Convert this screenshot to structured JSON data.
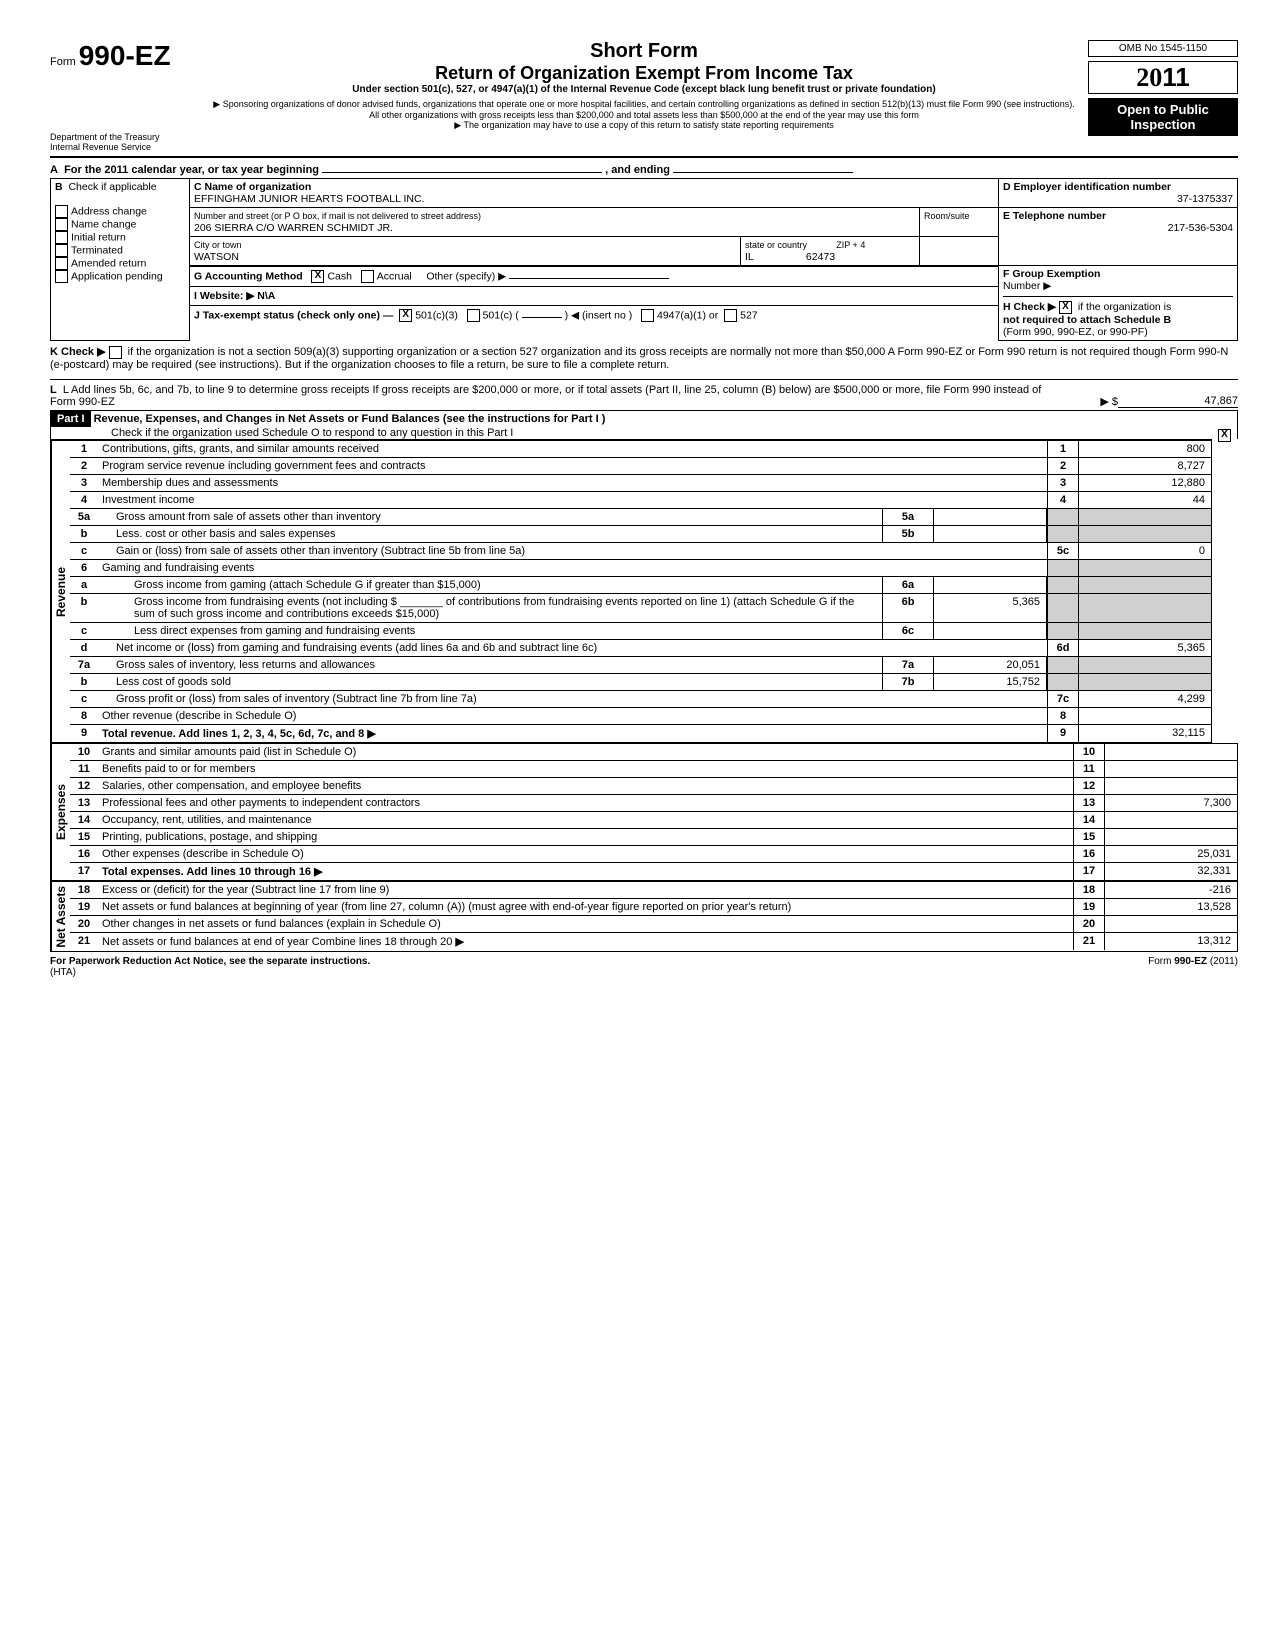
{
  "header": {
    "form_prefix": "Form",
    "form_number": "990-EZ",
    "title1": "Short Form",
    "title2": "Return of Organization Exempt From Income Tax",
    "subtitle": "Under section 501(c), 527, or 4947(a)(1) of the Internal Revenue Code (except black lung benefit trust or private foundation)",
    "sponsor_note": "▶ Sponsoring organizations of donor advised funds, organizations that operate one or more hospital facilities, and certain controlling organizations as defined in section 512(b)(13) must file Form 990 (see instructions). All other organizations with gross receipts less than $200,000 and total assets less than $500,000 at the end of the year may use this form",
    "copy_note": "▶ The organization may have to use a copy of this return to satisfy state reporting requirements",
    "dept1": "Department of the Treasury",
    "dept2": "Internal Revenue Service",
    "omb": "OMB No 1545-1150",
    "year_prefix": "20",
    "year_suffix": "11",
    "open1": "Open to Public",
    "open2": "Inspection"
  },
  "sectionA": {
    "A": "For the 2011 calendar year, or tax year beginning",
    "A_end": ", and ending",
    "B": "Check if applicable",
    "B_items": [
      "Address change",
      "Name change",
      "Initial return",
      "Terminated",
      "Amended return",
      "Application pending"
    ],
    "C": "C  Name of organization",
    "C_val": "EFFINGHAM JUNIOR HEARTS FOOTBALL INC.",
    "C_street_label": "Number and street (or P O box, if mail is not delivered to street address)",
    "C_street_val": "206 SIERRA  C/O WARREN SCHMIDT JR.",
    "C_room": "Room/suite",
    "C_city_label": "City or town",
    "C_city_val": "WATSON",
    "C_state_label": "state or country",
    "C_state_val": "IL",
    "C_zip_label": "ZIP + 4",
    "C_zip_val": "62473",
    "D": "D  Employer identification number",
    "D_val": "37-1375337",
    "E": "E  Telephone number",
    "E_val": "217-536-5304",
    "F": "F  Group Exemption",
    "F2": "Number ▶",
    "G": "G  Accounting Method",
    "G_cash": "Cash",
    "G_accrual": "Accrual",
    "G_other": "Other (specify) ▶",
    "H": "H  Check ▶",
    "H_tail": "if the organization is",
    "H2": "not required to attach Schedule B",
    "H3": "(Form 990, 990-EZ, or 990-PF)",
    "I": "I   Website: ▶ N\\A",
    "J": "J   Tax-exempt status (check only one) —",
    "J_501c3": "501(c)(3)",
    "J_501c": "501(c) (",
    "J_insert": ") ◀ (insert no )",
    "J_4947": "4947(a)(1) or",
    "J_527": "527",
    "K": "K  Check ▶",
    "K_text": "if the organization is not a section 509(a)(3) supporting organization or a section 527 organization and its gross receipts are normally not more than $50,000  A Form 990-EZ or Form 990 return is not required though Form 990-N (e-postcard) may be required (see instructions). But if the organization chooses to file a return, be sure to file a complete return.",
    "L": "L  Add lines 5b, 6c, and 7b, to line 9 to determine gross receipts  If gross receipts are $200,000 or more, or if total assets (Part II, line 25, column (B) below) are $500,000 or more, file Form 990 instead of Form 990-EZ",
    "L_arrow": "▶ $",
    "L_val": "47,867"
  },
  "part1": {
    "bar": "Part I",
    "title": "Revenue, Expenses, and Changes in Net Assets or Fund Balances (see the instructions for Part I )",
    "check_note": "Check if the organization used Schedule O to respond to any question in this Part I",
    "vlabels": {
      "rev": "Revenue",
      "exp": "Expenses",
      "net": "Net Assets"
    },
    "lines": {
      "1": {
        "n": "1",
        "label": "Contributions, gifts, grants, and similar amounts received",
        "box": "1",
        "val": "800"
      },
      "2": {
        "n": "2",
        "label": "Program service revenue including government fees and contracts",
        "box": "2",
        "val": "8,727"
      },
      "3": {
        "n": "3",
        "label": "Membership dues and assessments",
        "box": "3",
        "val": "12,880"
      },
      "4": {
        "n": "4",
        "label": "Investment income",
        "box": "4",
        "val": "44"
      },
      "5a": {
        "n": "5a",
        "label": "Gross amount from sale of assets other than inventory",
        "sub": "5a",
        "subval": ""
      },
      "5b": {
        "n": "b",
        "label": "Less. cost or other basis and sales expenses",
        "sub": "5b",
        "subval": ""
      },
      "5c": {
        "n": "c",
        "label": "Gain or (loss) from sale of assets other than inventory (Subtract line 5b from line 5a)",
        "box": "5c",
        "val": "0"
      },
      "6": {
        "n": "6",
        "label": "Gaming and fundraising events"
      },
      "6a": {
        "n": "a",
        "label": "Gross income from gaming (attach Schedule G if greater than $15,000)",
        "sub": "6a",
        "subval": ""
      },
      "6b": {
        "n": "b",
        "label": "Gross income from fundraising events (not including $ _______ of contributions from fundraising events reported on line 1) (attach Schedule G if the sum of such gross income and contributions exceeds $15,000)",
        "sub": "6b",
        "subval": "5,365"
      },
      "6c": {
        "n": "c",
        "label": "Less direct expenses from gaming and fundraising events",
        "sub": "6c",
        "subval": ""
      },
      "6d": {
        "n": "d",
        "label": "Net income or (loss) from gaming and fundraising events (add lines 6a and 6b and subtract line 6c)",
        "box": "6d",
        "val": "5,365"
      },
      "7a": {
        "n": "7a",
        "label": "Gross sales of inventory, less returns and allowances",
        "sub": "7a",
        "subval": "20,051"
      },
      "7b": {
        "n": "b",
        "label": "Less cost of goods sold",
        "sub": "7b",
        "subval": "15,752"
      },
      "7c": {
        "n": "c",
        "label": "Gross profit or (loss) from sales of inventory (Subtract line 7b from line 7a)",
        "box": "7c",
        "val": "4,299"
      },
      "8": {
        "n": "8",
        "label": "Other revenue (describe in Schedule O)",
        "box": "8",
        "val": ""
      },
      "9": {
        "n": "9",
        "label": "Total revenue. Add lines 1, 2, 3, 4, 5c, 6d, 7c, and 8",
        "box": "9",
        "val": "32,115",
        "bold": true,
        "arrow": true
      },
      "10": {
        "n": "10",
        "label": "Grants and similar amounts paid (list in Schedule O)",
        "box": "10",
        "val": ""
      },
      "11": {
        "n": "11",
        "label": "Benefits paid to or for members",
        "box": "11",
        "val": ""
      },
      "12": {
        "n": "12",
        "label": "Salaries, other compensation, and employee benefits",
        "box": "12",
        "val": ""
      },
      "13": {
        "n": "13",
        "label": "Professional fees and other payments to independent contractors",
        "box": "13",
        "val": "7,300"
      },
      "14": {
        "n": "14",
        "label": "Occupancy, rent, utilities, and maintenance",
        "box": "14",
        "val": ""
      },
      "15": {
        "n": "15",
        "label": "Printing, publications, postage, and shipping",
        "box": "15",
        "val": ""
      },
      "16": {
        "n": "16",
        "label": "Other expenses (describe in Schedule O)",
        "box": "16",
        "val": "25,031"
      },
      "17": {
        "n": "17",
        "label": "Total expenses. Add lines 10 through 16",
        "box": "17",
        "val": "32,331",
        "bold": true,
        "arrow": true
      },
      "18": {
        "n": "18",
        "label": "Excess or (deficit) for the year (Subtract line 17 from line 9)",
        "box": "18",
        "val": "-216"
      },
      "19": {
        "n": "19",
        "label": "Net assets or fund balances at beginning of year (from line 27, column (A)) (must agree with end-of-year figure reported on prior year's return)",
        "box": "19",
        "val": "13,528"
      },
      "20": {
        "n": "20",
        "label": "Other changes in net assets or fund balances (explain in Schedule O)",
        "box": "20",
        "val": ""
      },
      "21": {
        "n": "21",
        "label": "Net assets or fund balances at end of year  Combine lines 18 through 20",
        "box": "21",
        "val": "13,312",
        "arrow": true
      }
    }
  },
  "footer": {
    "left": "For Paperwork Reduction Act Notice, see the separate instructions.",
    "hta": "(HTA)",
    "right": "Form 990-EZ (2011)"
  },
  "style": {
    "bg": "#ffffff",
    "text": "#000000",
    "shade": "#d0d0d0",
    "font_base": 11,
    "font_small": 9,
    "font_title": 20
  }
}
